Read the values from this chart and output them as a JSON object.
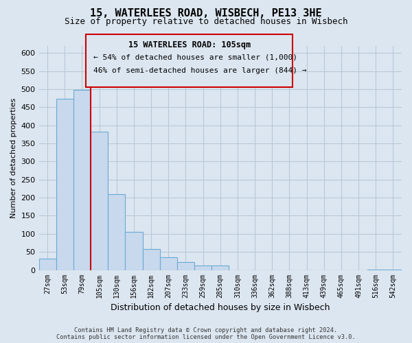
{
  "title": "15, WATERLEES ROAD, WISBECH, PE13 3HE",
  "subtitle": "Size of property relative to detached houses in Wisbech",
  "xlabel": "Distribution of detached houses by size in Wisbech",
  "ylabel": "Number of detached properties",
  "bar_labels": [
    "27sqm",
    "53sqm",
    "79sqm",
    "105sqm",
    "130sqm",
    "156sqm",
    "182sqm",
    "207sqm",
    "233sqm",
    "259sqm",
    "285sqm",
    "310sqm",
    "336sqm",
    "362sqm",
    "388sqm",
    "413sqm",
    "439sqm",
    "465sqm",
    "491sqm",
    "516sqm",
    "542sqm"
  ],
  "bar_values": [
    32,
    473,
    498,
    383,
    210,
    106,
    58,
    36,
    21,
    12,
    12,
    0,
    0,
    0,
    0,
    0,
    0,
    0,
    0,
    2,
    2
  ],
  "bar_color": "#c8d8ed",
  "bar_edge_color": "#6aaad4",
  "highlight_line_index": 3,
  "highlight_color": "#cc0000",
  "ylim": [
    0,
    620
  ],
  "yticks": [
    0,
    50,
    100,
    150,
    200,
    250,
    300,
    350,
    400,
    450,
    500,
    550,
    600
  ],
  "annotation_title": "15 WATERLEES ROAD: 105sqm",
  "annotation_line1": "← 54% of detached houses are smaller (1,000)",
  "annotation_line2": "46% of semi-detached houses are larger (844) →",
  "footer_line1": "Contains HM Land Registry data © Crown copyright and database right 2024.",
  "footer_line2": "Contains public sector information licensed under the Open Government Licence v3.0.",
  "bg_color": "#dce6f0",
  "plot_bg_color": "#dce6f0",
  "grid_color": "#b8c8d8",
  "title_fontsize": 11,
  "subtitle_fontsize": 9
}
